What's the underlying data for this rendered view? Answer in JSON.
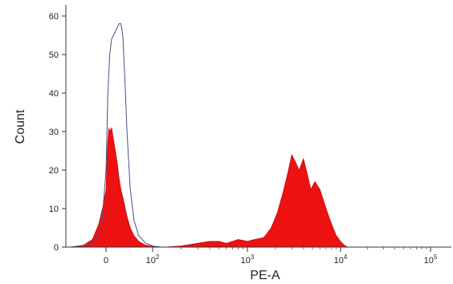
{
  "chart_data": {
    "type": "area",
    "title": "",
    "xlabel": "PE-A",
    "ylabel": "Count",
    "xscale": "biexponential",
    "xlim": [
      -40,
      100000
    ],
    "ylim": [
      0,
      65
    ],
    "grid": false,
    "x_ticks": [
      {
        "value": 0,
        "base": "0",
        "exp": ""
      },
      {
        "value": 100,
        "base": "10",
        "exp": "2"
      },
      {
        "value": 1000,
        "base": "10",
        "exp": "3"
      },
      {
        "value": 10000,
        "base": "10",
        "exp": "4"
      },
      {
        "value": 100000,
        "base": "10",
        "exp": "5"
      }
    ],
    "y_ticks": [
      0,
      10,
      20,
      30,
      40,
      50,
      60
    ],
    "series": [
      {
        "style": "outline",
        "color": "#4a4f86",
        "points": [
          [
            -40,
            0
          ],
          [
            -20,
            0.5
          ],
          [
            -12,
            1.5
          ],
          [
            -5,
            5
          ],
          [
            0,
            20
          ],
          [
            4,
            40
          ],
          [
            8,
            50
          ],
          [
            12,
            54
          ],
          [
            16,
            55
          ],
          [
            20,
            56
          ],
          [
            24,
            57
          ],
          [
            28,
            58
          ],
          [
            32,
            58
          ],
          [
            36,
            55
          ],
          [
            40,
            45
          ],
          [
            45,
            30
          ],
          [
            52,
            15
          ],
          [
            60,
            7
          ],
          [
            70,
            3
          ],
          [
            85,
            1
          ],
          [
            100,
            0.3
          ],
          [
            120,
            0
          ],
          [
            100000,
            0
          ]
        ]
      },
      {
        "style": "filled",
        "color": "#ee1111",
        "points": [
          [
            -40,
            0
          ],
          [
            -25,
            0.5
          ],
          [
            -15,
            2
          ],
          [
            -8,
            6
          ],
          [
            -3,
            11
          ],
          [
            0,
            15
          ],
          [
            3,
            26
          ],
          [
            6,
            31
          ],
          [
            8,
            30
          ],
          [
            12,
            31
          ],
          [
            16,
            28
          ],
          [
            20,
            25
          ],
          [
            24,
            22
          ],
          [
            28,
            18
          ],
          [
            32,
            15
          ],
          [
            38,
            12
          ],
          [
            45,
            8
          ],
          [
            52,
            5
          ],
          [
            60,
            3
          ],
          [
            70,
            1.5
          ],
          [
            85,
            0.5
          ],
          [
            100,
            0.2
          ],
          [
            130,
            0
          ],
          [
            200,
            0.3
          ],
          [
            300,
            1
          ],
          [
            400,
            1.5
          ],
          [
            500,
            1.5
          ],
          [
            600,
            1
          ],
          [
            700,
            1.5
          ],
          [
            800,
            2
          ],
          [
            1000,
            1.5
          ],
          [
            1200,
            2
          ],
          [
            1500,
            2.5
          ],
          [
            1800,
            5
          ],
          [
            2100,
            9
          ],
          [
            2400,
            14
          ],
          [
            2700,
            19
          ],
          [
            3000,
            24
          ],
          [
            3300,
            22
          ],
          [
            3600,
            20
          ],
          [
            4000,
            23
          ],
          [
            4400,
            19
          ],
          [
            4800,
            15
          ],
          [
            5300,
            17
          ],
          [
            6000,
            15
          ],
          [
            7000,
            10
          ],
          [
            8000,
            6
          ],
          [
            9000,
            3
          ],
          [
            10000,
            1.5
          ],
          [
            11000,
            0.5
          ],
          [
            12000,
            0
          ],
          [
            100000,
            0
          ]
        ]
      }
    ]
  }
}
